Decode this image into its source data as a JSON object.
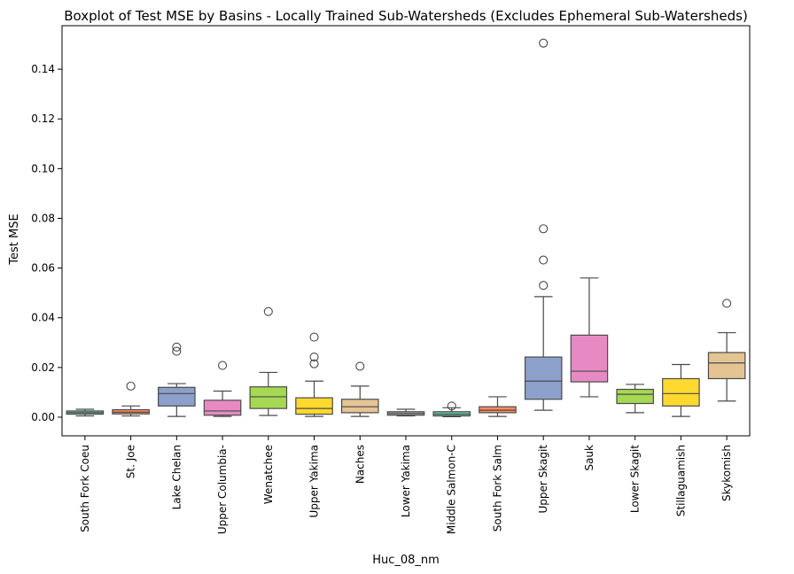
{
  "chart_data": {
    "type": "boxplot",
    "title": "Boxplot of Test MSE by Basins - Locally Trained Sub-Watersheds (Excludes Ephemeral Sub-Watersheds)",
    "xlabel": "Huc_08_nm",
    "ylabel": "Test MSE",
    "ylim": [
      -0.0075,
      0.1575
    ],
    "yticks": [
      0.0,
      0.02,
      0.04,
      0.06,
      0.08,
      0.1,
      0.12,
      0.14
    ],
    "ytick_labels": [
      "0.00",
      "0.02",
      "0.04",
      "0.06",
      "0.08",
      "0.10",
      "0.12",
      "0.14"
    ],
    "grid": false,
    "legend": "none",
    "categories": [
      "South Fork Coeu",
      "St. Joe",
      "Lake Chelan",
      "Upper Columbia-",
      "Wenatchee",
      "Upper Yakima",
      "Naches",
      "Lower Yakima",
      "Middle Salmon-C",
      "South Fork Salm",
      "Upper Skagit",
      "Sauk",
      "Lower Skagit",
      "Stillaguamish",
      "Skykomish"
    ],
    "colors": [
      "#66c2a5",
      "#fc8d62",
      "#8da0cb",
      "#e78ac3",
      "#a6d854",
      "#ffd92f",
      "#e5c494",
      "#b3b3b3",
      "#66c2a5",
      "#fc8d62",
      "#8da0cb",
      "#e78ac3",
      "#a6d854",
      "#ffd92f",
      "#e5c494"
    ],
    "boxes": [
      {
        "whislo": 0.0005,
        "q1": 0.0012,
        "median": 0.0018,
        "q3": 0.0025,
        "whishi": 0.0032,
        "fliers": []
      },
      {
        "whislo": 0.0005,
        "q1": 0.0013,
        "median": 0.002,
        "q3": 0.003,
        "whishi": 0.0045,
        "fliers": [
          0.0125
        ]
      },
      {
        "whislo": 0.0003,
        "q1": 0.0045,
        "median": 0.0095,
        "q3": 0.012,
        "whishi": 0.0135,
        "fliers": [
          0.0265,
          0.0282
        ]
      },
      {
        "whislo": 0.0003,
        "q1": 0.0008,
        "median": 0.0025,
        "q3": 0.0068,
        "whishi": 0.0105,
        "fliers": [
          0.0208
        ]
      },
      {
        "whislo": 0.0007,
        "q1": 0.0035,
        "median": 0.0082,
        "q3": 0.0122,
        "whishi": 0.018,
        "fliers": [
          0.0425
        ]
      },
      {
        "whislo": 0.0003,
        "q1": 0.0012,
        "median": 0.0035,
        "q3": 0.0078,
        "whishi": 0.0145,
        "fliers": [
          0.0215,
          0.0242,
          0.0322
        ]
      },
      {
        "whislo": 0.0003,
        "q1": 0.0018,
        "median": 0.0042,
        "q3": 0.0072,
        "whishi": 0.0125,
        "fliers": [
          0.0205
        ]
      },
      {
        "whislo": 0.0005,
        "q1": 0.0008,
        "median": 0.0015,
        "q3": 0.0022,
        "whishi": 0.0032,
        "fliers": []
      },
      {
        "whislo": 0.0002,
        "q1": 0.0005,
        "median": 0.0012,
        "q3": 0.0022,
        "whishi": 0.0038,
        "fliers": [
          0.0045
        ]
      },
      {
        "whislo": 0.0003,
        "q1": 0.0018,
        "median": 0.0028,
        "q3": 0.0042,
        "whishi": 0.0082,
        "fliers": []
      },
      {
        "whislo": 0.0028,
        "q1": 0.0072,
        "median": 0.0145,
        "q3": 0.0242,
        "whishi": 0.0485,
        "fliers": [
          0.053,
          0.0632,
          0.0758,
          0.1505
        ]
      },
      {
        "whislo": 0.0082,
        "q1": 0.0142,
        "median": 0.0185,
        "q3": 0.033,
        "whishi": 0.056,
        "fliers": []
      },
      {
        "whislo": 0.0018,
        "q1": 0.0055,
        "median": 0.0092,
        "q3": 0.0112,
        "whishi": 0.0132,
        "fliers": []
      },
      {
        "whislo": 0.0003,
        "q1": 0.0045,
        "median": 0.0095,
        "q3": 0.0155,
        "whishi": 0.0212,
        "fliers": []
      },
      {
        "whislo": 0.0065,
        "q1": 0.0155,
        "median": 0.0218,
        "q3": 0.026,
        "whishi": 0.034,
        "fliers": [
          0.0458
        ]
      }
    ]
  }
}
